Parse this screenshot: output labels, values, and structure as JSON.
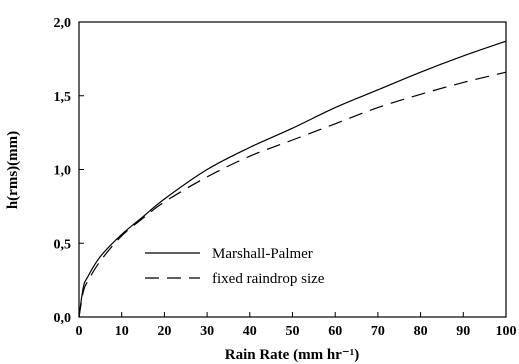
{
  "chart_data": {
    "type": "line",
    "xlabel": "Rain Rate (mm hr⁻¹)",
    "ylabel": "h(rms)(mm)",
    "xlim": [
      0,
      100
    ],
    "ylim": [
      0,
      2.0
    ],
    "x_ticks": [
      0,
      10,
      20,
      30,
      40,
      50,
      60,
      70,
      80,
      90,
      100
    ],
    "x_tick_labels": [
      "0",
      "10",
      "20",
      "30",
      "40",
      "50",
      "60",
      "70",
      "80",
      "90",
      "100"
    ],
    "y_ticks": [
      0,
      0.5,
      1.0,
      1.5,
      2.0
    ],
    "y_tick_labels": [
      "0,0",
      "0,5",
      "1,0",
      "1,5",
      "2,0"
    ],
    "grid": false,
    "legend_position": "lower-center",
    "series": [
      {
        "name": "Marshall-Palmer",
        "style": "solid",
        "x": [
          0,
          1,
          2,
          5,
          10,
          15,
          20,
          30,
          40,
          50,
          60,
          70,
          80,
          90,
          100
        ],
        "values": [
          0,
          0.2,
          0.27,
          0.41,
          0.56,
          0.68,
          0.8,
          1.0,
          1.15,
          1.28,
          1.42,
          1.54,
          1.66,
          1.77,
          1.87
        ]
      },
      {
        "name": "fixed raindrop size",
        "style": "dashed",
        "x": [
          0,
          1,
          2,
          5,
          10,
          15,
          20,
          30,
          40,
          50,
          60,
          70,
          80,
          90,
          100
        ],
        "values": [
          0,
          0.17,
          0.24,
          0.38,
          0.55,
          0.67,
          0.78,
          0.95,
          1.09,
          1.2,
          1.31,
          1.42,
          1.51,
          1.59,
          1.66
        ]
      }
    ]
  }
}
